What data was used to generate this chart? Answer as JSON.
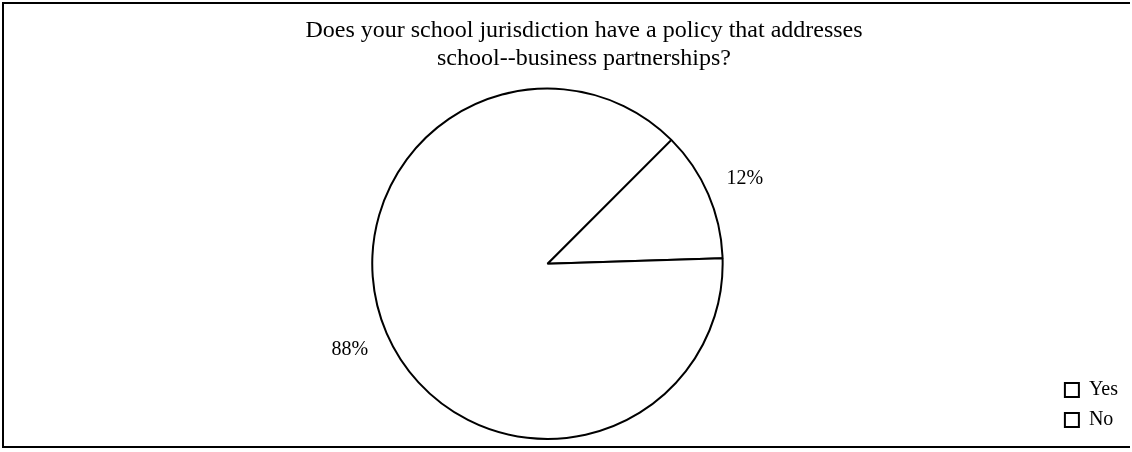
{
  "chart_data": {
    "type": "pie",
    "title": "Does your school jurisdiction have a policy that addresses school--business partnerships?",
    "categories": [
      "Yes",
      "No"
    ],
    "values": [
      12,
      88
    ],
    "colors": [
      "#ffffff",
      "#ffffff"
    ],
    "value_labels": [
      "12%",
      "88%"
    ],
    "legend": "right"
  }
}
